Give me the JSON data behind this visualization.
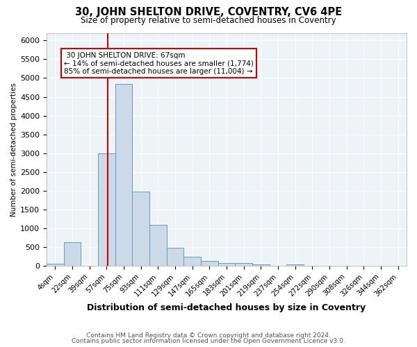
{
  "title": "30, JOHN SHELTON DRIVE, COVENTRY, CV6 4PE",
  "subtitle": "Size of property relative to semi-detached houses in Coventry",
  "xlabel": "Distribution of semi-detached houses by size in Coventry",
  "ylabel": "Number of semi-detached properties",
  "bin_labels": [
    "4sqm",
    "22sqm",
    "39sqm",
    "57sqm",
    "75sqm",
    "93sqm",
    "111sqm",
    "129sqm",
    "147sqm",
    "165sqm",
    "183sqm",
    "201sqm",
    "219sqm",
    "237sqm",
    "254sqm",
    "272sqm",
    "290sqm",
    "308sqm",
    "326sqm",
    "344sqm",
    "362sqm"
  ],
  "bin_values": [
    65,
    635,
    0,
    3000,
    4850,
    1980,
    1100,
    480,
    250,
    130,
    80,
    80,
    50,
    0,
    50,
    0,
    0,
    0,
    0,
    0,
    0
  ],
  "bar_color": "#ccd9e8",
  "bar_edge_color": "#6699bb",
  "property_label": "30 JOHN SHELTON DRIVE: 67sqm",
  "smaller_pct": 14,
  "smaller_count": 1774,
  "larger_pct": 85,
  "larger_count": 11004,
  "red_line_color": "#cc0000",
  "annotation_box_edge_color": "#cc0000",
  "ylim": [
    0,
    6200
  ],
  "yticks": [
    0,
    500,
    1000,
    1500,
    2000,
    2500,
    3000,
    3500,
    4000,
    4500,
    5000,
    5500,
    6000
  ],
  "footnote1": "Contains HM Land Registry data © Crown copyright and database right 2024.",
  "footnote2": "Contains public sector information licensed under the Open Government Licence v3.0.",
  "bg_color": "#f0f4f8"
}
